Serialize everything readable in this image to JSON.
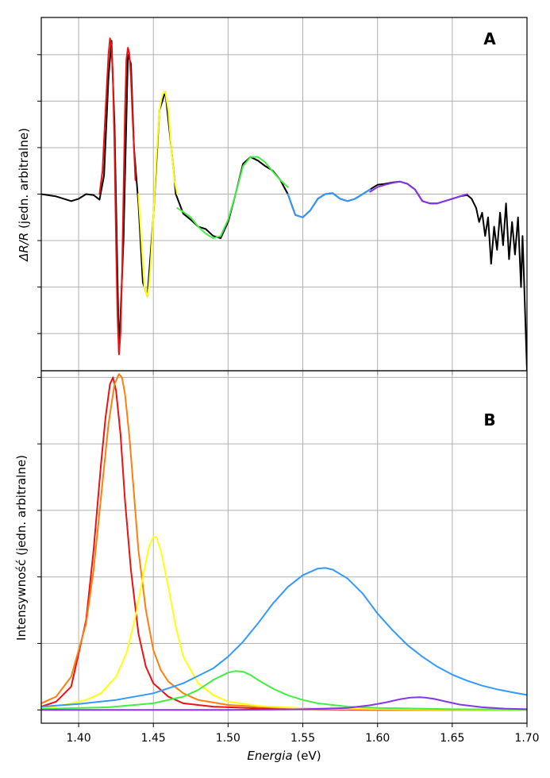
{
  "colors": {
    "black": "#000000",
    "red": "#ee1111",
    "orange": "#ff7f0e",
    "yellow": "#ffff11",
    "green": "#44ee44",
    "blue": "#3399ff",
    "purple": "#8833ee",
    "grid": "#b0b0b0"
  },
  "chart_data": [
    {
      "type": "line",
      "panel_label": "A",
      "title": "",
      "xlabel": "",
      "ylabel_italic": "ΔR/R",
      "ylabel_rest": " (jedn. arbitralne)",
      "xlim": [
        1.375,
        1.7
      ],
      "ylim": [
        -3.8,
        3.8
      ],
      "y_ticks": [
        3,
        2,
        1,
        0,
        -1,
        -2,
        -3
      ],
      "x_ticks": [
        1.4,
        1.45,
        1.5,
        1.55,
        1.6,
        1.65,
        1.7
      ],
      "grid": true,
      "series": [
        {
          "color_key": "black",
          "x": [
            1.375,
            1.385,
            1.395,
            1.4,
            1.405,
            1.41,
            1.414,
            1.417,
            1.42,
            1.422,
            1.424,
            1.427,
            1.43,
            1.433,
            1.435,
            1.437,
            1.44,
            1.443,
            1.446,
            1.45,
            1.454,
            1.458,
            1.462,
            1.465,
            1.47,
            1.475,
            1.48,
            1.485,
            1.49,
            1.495,
            1.5,
            1.505,
            1.51,
            1.515,
            1.52,
            1.525,
            1.53,
            1.535,
            1.54,
            1.545,
            1.55,
            1.555,
            1.56,
            1.565,
            1.57,
            1.575,
            1.58,
            1.585,
            1.59,
            1.595,
            1.6,
            1.605,
            1.61,
            1.615,
            1.62,
            1.625,
            1.63,
            1.635,
            1.64,
            1.645,
            1.65,
            1.655,
            1.66,
            1.663,
            1.666,
            1.668,
            1.67,
            1.672,
            1.674,
            1.676,
            1.678,
            1.68,
            1.682,
            1.684,
            1.686,
            1.688,
            1.69,
            1.692,
            1.694,
            1.696,
            1.697,
            1.698,
            1.699,
            1.7
          ],
          "y": [
            0.0,
            -0.05,
            -0.15,
            -0.1,
            0.0,
            -0.02,
            -0.12,
            0.4,
            2.5,
            3.3,
            1.5,
            -3.4,
            -1.0,
            3.0,
            2.8,
            1.0,
            -0.2,
            -1.9,
            -2.2,
            -0.5,
            1.8,
            2.2,
            1.0,
            0.0,
            -0.42,
            -0.55,
            -0.7,
            -0.75,
            -0.9,
            -0.95,
            -0.6,
            0.0,
            0.65,
            0.8,
            0.72,
            0.6,
            0.5,
            0.3,
            0.0,
            -0.45,
            -0.5,
            -0.35,
            -0.1,
            0.0,
            0.02,
            -0.1,
            -0.15,
            -0.1,
            0.0,
            0.1,
            0.2,
            0.22,
            0.25,
            0.27,
            0.22,
            0.1,
            -0.15,
            -0.2,
            -0.2,
            -0.15,
            -0.1,
            -0.05,
            -0.02,
            -0.1,
            -0.3,
            -0.6,
            -0.4,
            -0.9,
            -0.5,
            -1.5,
            -0.7,
            -1.2,
            -0.4,
            -1.1,
            -0.2,
            -1.4,
            -0.6,
            -1.3,
            -0.5,
            -2.0,
            -0.9,
            -1.8,
            -2.8,
            -3.8
          ]
        },
        {
          "color_key": "red",
          "x": [
            1.414,
            1.416,
            1.418,
            1.42,
            1.421,
            1.422,
            1.423,
            1.424,
            1.425,
            1.426,
            1.427,
            1.428,
            1.429,
            1.43,
            1.431,
            1.432,
            1.433,
            1.434,
            1.435,
            1.436,
            1.437,
            1.438
          ],
          "y": [
            0.0,
            0.5,
            1.8,
            3.0,
            3.35,
            3.2,
            2.4,
            1.0,
            -1.0,
            -2.6,
            -3.45,
            -3.0,
            -1.8,
            0.0,
            1.8,
            2.9,
            3.15,
            3.0,
            2.5,
            1.7,
            1.0,
            0.3
          ]
        },
        {
          "color_key": "yellow",
          "x": [
            1.44,
            1.442,
            1.444,
            1.446,
            1.447,
            1.448,
            1.45,
            1.452,
            1.454,
            1.456,
            1.458,
            1.46,
            1.462,
            1.464,
            1.466
          ],
          "y": [
            0.0,
            -1.0,
            -2.0,
            -2.2,
            -2.0,
            -1.6,
            -0.5,
            0.8,
            1.8,
            2.15,
            2.2,
            1.8,
            1.0,
            0.3,
            0.0
          ]
        },
        {
          "color_key": "green",
          "x": [
            1.466,
            1.47,
            1.475,
            1.48,
            1.485,
            1.49,
            1.495,
            1.5,
            1.505,
            1.51,
            1.515,
            1.52,
            1.525,
            1.53,
            1.535,
            1.54
          ],
          "y": [
            -0.3,
            -0.38,
            -0.5,
            -0.7,
            -0.85,
            -0.95,
            -0.9,
            -0.55,
            0.0,
            0.6,
            0.8,
            0.8,
            0.68,
            0.48,
            0.3,
            0.15
          ]
        },
        {
          "color_key": "blue",
          "x": [
            1.54,
            1.545,
            1.55,
            1.555,
            1.56,
            1.565,
            1.57,
            1.575,
            1.58,
            1.585,
            1.59,
            1.595
          ],
          "y": [
            0.0,
            -0.45,
            -0.5,
            -0.35,
            -0.1,
            0.0,
            0.02,
            -0.1,
            -0.15,
            -0.1,
            0.0,
            0.1
          ]
        },
        {
          "color_key": "purple",
          "x": [
            1.595,
            1.6,
            1.605,
            1.61,
            1.615,
            1.62,
            1.625,
            1.63,
            1.635,
            1.64,
            1.645,
            1.65,
            1.655,
            1.66
          ],
          "y": [
            0.05,
            0.15,
            0.2,
            0.24,
            0.27,
            0.22,
            0.1,
            -0.15,
            -0.2,
            -0.2,
            -0.15,
            -0.1,
            -0.05,
            0.0
          ]
        }
      ]
    },
    {
      "type": "line",
      "panel_label": "B",
      "title": "",
      "xlabel_italic": "Energia",
      "xlabel_rest": " (eV)",
      "ylabel": "Intensywność (jedn. arbitralne)",
      "xlim": [
        1.375,
        1.7
      ],
      "ylim": [
        -0.04,
        1.02
      ],
      "y_ticks": [
        0.0,
        0.2,
        0.4,
        0.6,
        0.8,
        1.0
      ],
      "x_ticks": [
        1.4,
        1.45,
        1.5,
        1.55,
        1.6,
        1.65,
        1.7
      ],
      "x_tick_labels": [
        "1.40",
        "1.45",
        "1.50",
        "1.55",
        "1.60",
        "1.65",
        "1.70"
      ],
      "grid": true,
      "series": [
        {
          "color_key": "red",
          "x": [
            1.375,
            1.385,
            1.395,
            1.405,
            1.41,
            1.415,
            1.418,
            1.421,
            1.423,
            1.425,
            1.428,
            1.431,
            1.435,
            1.44,
            1.445,
            1.45,
            1.46,
            1.47,
            1.49,
            1.52,
            1.56,
            1.6,
            1.65,
            1.7
          ],
          "y": [
            0.01,
            0.025,
            0.07,
            0.27,
            0.48,
            0.74,
            0.88,
            0.98,
            1.0,
            0.96,
            0.83,
            0.63,
            0.42,
            0.23,
            0.13,
            0.08,
            0.04,
            0.02,
            0.01,
            0.005,
            0.002,
            0.0,
            0.0,
            0.0
          ]
        },
        {
          "color_key": "orange",
          "x": [
            1.375,
            1.385,
            1.395,
            1.405,
            1.41,
            1.415,
            1.42,
            1.424,
            1.427,
            1.429,
            1.431,
            1.434,
            1.437,
            1.44,
            1.445,
            1.45,
            1.455,
            1.46,
            1.47,
            1.48,
            1.5,
            1.53,
            1.57,
            1.62,
            1.7
          ],
          "y": [
            0.02,
            0.04,
            0.1,
            0.26,
            0.42,
            0.64,
            0.86,
            0.98,
            1.01,
            1.0,
            0.95,
            0.82,
            0.65,
            0.48,
            0.3,
            0.18,
            0.12,
            0.085,
            0.05,
            0.03,
            0.015,
            0.007,
            0.003,
            0.001,
            0.0
          ]
        },
        {
          "color_key": "yellow",
          "x": [
            1.375,
            1.39,
            1.405,
            1.415,
            1.425,
            1.432,
            1.438,
            1.443,
            1.447,
            1.45,
            1.452,
            1.455,
            1.46,
            1.465,
            1.47,
            1.48,
            1.49,
            1.5,
            1.52,
            1.55,
            1.6,
            1.7
          ],
          "y": [
            0.005,
            0.015,
            0.03,
            0.05,
            0.1,
            0.17,
            0.28,
            0.4,
            0.49,
            0.52,
            0.52,
            0.48,
            0.37,
            0.25,
            0.16,
            0.08,
            0.045,
            0.025,
            0.012,
            0.005,
            0.002,
            0.0
          ]
        },
        {
          "color_key": "green",
          "x": [
            1.375,
            1.42,
            1.45,
            1.47,
            1.48,
            1.49,
            1.5,
            1.505,
            1.51,
            1.515,
            1.52,
            1.53,
            1.54,
            1.55,
            1.56,
            1.58,
            1.6,
            1.65,
            1.7
          ],
          "y": [
            0.003,
            0.008,
            0.02,
            0.04,
            0.06,
            0.09,
            0.112,
            0.117,
            0.115,
            0.105,
            0.09,
            0.064,
            0.044,
            0.03,
            0.02,
            0.01,
            0.006,
            0.002,
            0.001
          ]
        },
        {
          "color_key": "blue",
          "x": [
            1.375,
            1.4,
            1.425,
            1.45,
            1.47,
            1.49,
            1.5,
            1.51,
            1.52,
            1.53,
            1.54,
            1.55,
            1.56,
            1.565,
            1.57,
            1.58,
            1.59,
            1.6,
            1.61,
            1.62,
            1.63,
            1.64,
            1.65,
            1.66,
            1.67,
            1.68,
            1.69,
            1.7
          ],
          "y": [
            0.01,
            0.018,
            0.03,
            0.05,
            0.08,
            0.125,
            0.16,
            0.205,
            0.26,
            0.32,
            0.37,
            0.405,
            0.425,
            0.427,
            0.422,
            0.395,
            0.35,
            0.29,
            0.24,
            0.195,
            0.16,
            0.13,
            0.106,
            0.088,
            0.073,
            0.062,
            0.053,
            0.045
          ]
        },
        {
          "color_key": "purple",
          "x": [
            1.375,
            1.5,
            1.55,
            1.58,
            1.595,
            1.605,
            1.615,
            1.622,
            1.628,
            1.632,
            1.638,
            1.645,
            1.655,
            1.67,
            1.685,
            1.7
          ],
          "y": [
            0.0,
            0.0,
            0.002,
            0.006,
            0.014,
            0.022,
            0.032,
            0.037,
            0.038,
            0.037,
            0.033,
            0.026,
            0.016,
            0.008,
            0.004,
            0.002
          ]
        }
      ]
    }
  ]
}
